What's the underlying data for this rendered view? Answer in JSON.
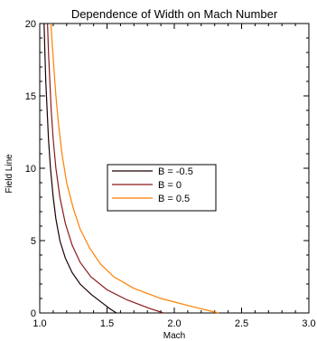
{
  "chart_data": {
    "type": "line",
    "title": "Dependence of Width on Mach Number",
    "xlabel": "Mach",
    "ylabel": "Field Line",
    "xlim": [
      1.0,
      3.0
    ],
    "ylim": [
      0,
      20
    ],
    "xticks": [
      1.0,
      1.5,
      2.0,
      2.5,
      3.0
    ],
    "xtick_labels": [
      "1.0",
      "1.5",
      "2.0",
      "2.5",
      "3.0"
    ],
    "yticks": [
      0,
      5,
      10,
      15,
      20
    ],
    "ytick_labels": [
      "0",
      "5",
      "10",
      "15",
      "20"
    ],
    "grid": false,
    "legend_position": "center",
    "series": [
      {
        "name": "B = -0.5",
        "color": "#1a0000",
        "points": [
          [
            1.57,
            0
          ],
          [
            1.52,
            0.3
          ],
          [
            1.45,
            0.8
          ],
          [
            1.38,
            1.3
          ],
          [
            1.3,
            2.0
          ],
          [
            1.24,
            2.8
          ],
          [
            1.19,
            3.8
          ],
          [
            1.15,
            5.0
          ],
          [
            1.12,
            6.5
          ],
          [
            1.1,
            8.0
          ],
          [
            1.08,
            10.0
          ],
          [
            1.065,
            12.0
          ],
          [
            1.055,
            14.0
          ],
          [
            1.045,
            16.0
          ],
          [
            1.038,
            18.0
          ],
          [
            1.032,
            20.0
          ]
        ]
      },
      {
        "name": "B = 0",
        "color": "#8b1a1a",
        "points": [
          [
            1.92,
            0
          ],
          [
            1.82,
            0.3
          ],
          [
            1.65,
            0.9
          ],
          [
            1.5,
            1.6
          ],
          [
            1.38,
            2.5
          ],
          [
            1.3,
            3.5
          ],
          [
            1.24,
            4.7
          ],
          [
            1.19,
            6.2
          ],
          [
            1.15,
            8.0
          ],
          [
            1.12,
            10.0
          ],
          [
            1.1,
            12.0
          ],
          [
            1.085,
            14.0
          ],
          [
            1.075,
            16.0
          ],
          [
            1.065,
            18.0
          ],
          [
            1.058,
            20.0
          ]
        ]
      },
      {
        "name": "B = 0.5",
        "color": "#ff7f00",
        "points": [
          [
            2.33,
            0
          ],
          [
            2.15,
            0.4
          ],
          [
            1.9,
            1.0
          ],
          [
            1.7,
            1.7
          ],
          [
            1.55,
            2.5
          ],
          [
            1.45,
            3.4
          ],
          [
            1.37,
            4.5
          ],
          [
            1.3,
            5.8
          ],
          [
            1.25,
            7.2
          ],
          [
            1.2,
            9.0
          ],
          [
            1.165,
            11.0
          ],
          [
            1.14,
            13.0
          ],
          [
            1.12,
            15.0
          ],
          [
            1.105,
            17.0
          ],
          [
            1.093,
            18.5
          ],
          [
            1.083,
            20.0
          ]
        ]
      }
    ]
  }
}
